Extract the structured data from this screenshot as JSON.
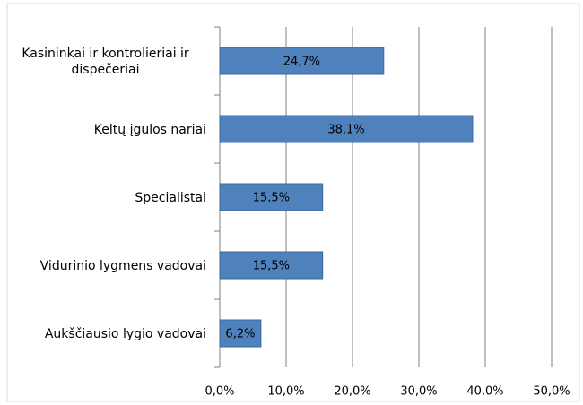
{
  "chart_data": {
    "type": "hbar",
    "categories": [
      "Kasininkai ir kontrolieriai ir dispečeriai",
      "Keltų įgulos nariai",
      "Specialistai",
      "Vidurinio lygmens vadovai",
      "Aukščiausio lygio vadovai"
    ],
    "values": [
      24.7,
      38.1,
      15.5,
      15.5,
      6.2
    ],
    "value_labels": [
      "24,7%",
      "38,1%",
      "15,5%",
      "15,5%",
      "6,2%"
    ],
    "color": "#4f81bd",
    "xlim": [
      0,
      50
    ],
    "xticks": [
      {
        "value": 0,
        "label": "0,0%"
      },
      {
        "value": 10,
        "label": "10,0%"
      },
      {
        "value": 20,
        "label": "20,0%"
      },
      {
        "value": 30,
        "label": "30,0%"
      },
      {
        "value": 40,
        "label": "40,0%"
      },
      {
        "value": 50,
        "label": "50,0%"
      }
    ],
    "grid": true
  }
}
